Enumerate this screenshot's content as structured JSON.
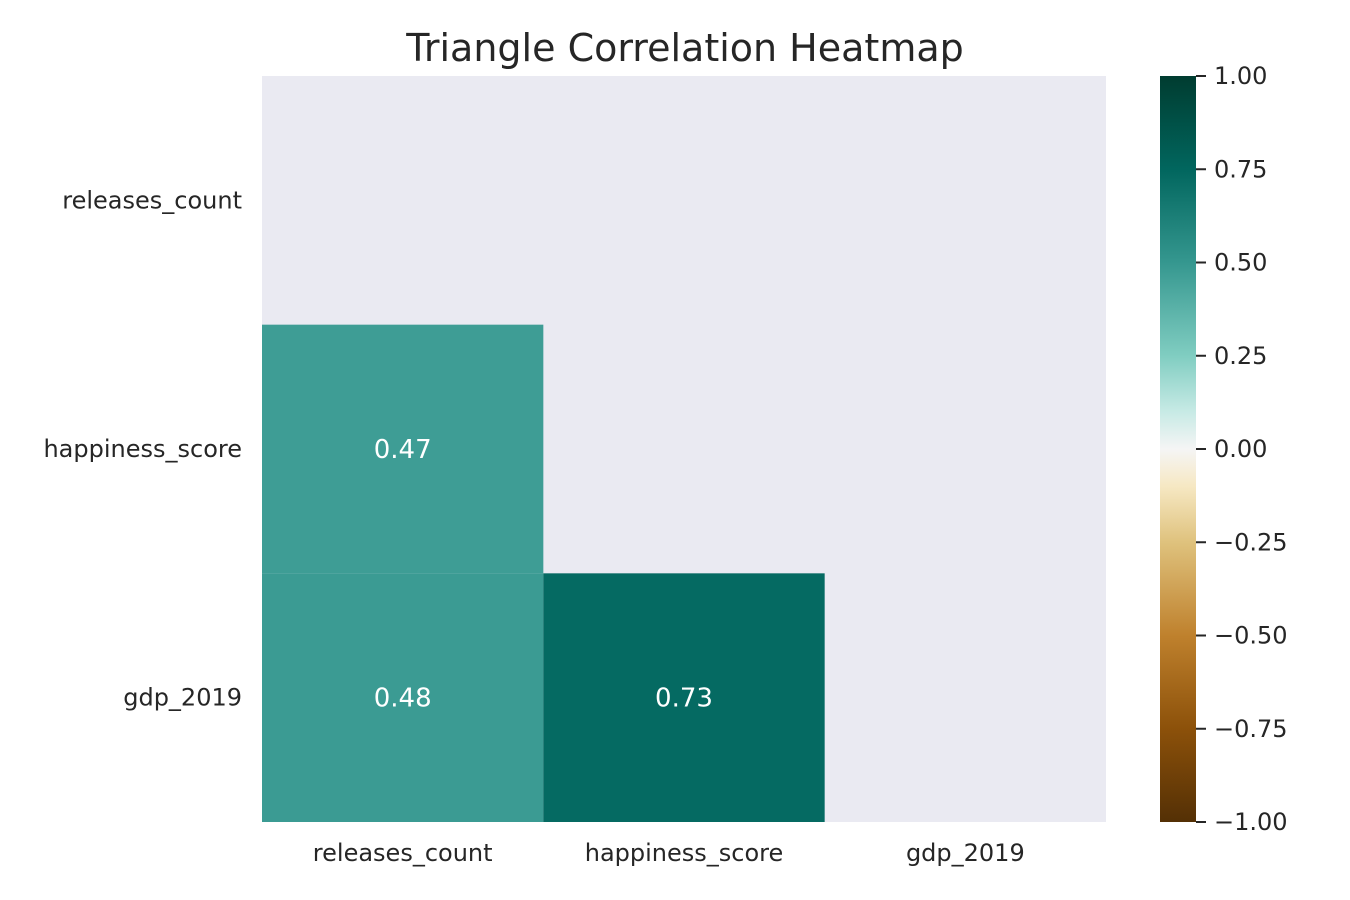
{
  "chart_data": {
    "type": "heatmap",
    "title": "Triangle Correlation Heatmap",
    "xlabel": "",
    "ylabel": "",
    "x_labels": [
      "releases_count",
      "happiness_score",
      "gdp_2019"
    ],
    "y_labels": [
      "releases_count",
      "happiness_score",
      "gdp_2019"
    ],
    "mask": "upper-triangle-including-diagonal",
    "cells": [
      {
        "row": 1,
        "col": 0,
        "value": 0.47,
        "label": "0.47"
      },
      {
        "row": 2,
        "col": 0,
        "value": 0.48,
        "label": "0.48"
      },
      {
        "row": 2,
        "col": 1,
        "value": 0.73,
        "label": "0.73"
      }
    ],
    "colormap": "BrBG",
    "vmin": -1.0,
    "vmax": 1.0,
    "colorbar_ticks": [
      1.0,
      0.75,
      0.5,
      0.25,
      0.0,
      -0.25,
      -0.5,
      -0.75,
      -1.0
    ],
    "colorbar_tick_labels": [
      "1.00",
      "0.75",
      "0.50",
      "0.25",
      "0.00",
      "−0.25",
      "−0.50",
      "−0.75",
      "−1.00"
    ],
    "colors": {
      "background": "#eaeaf2",
      "text": "#262626"
    }
  }
}
